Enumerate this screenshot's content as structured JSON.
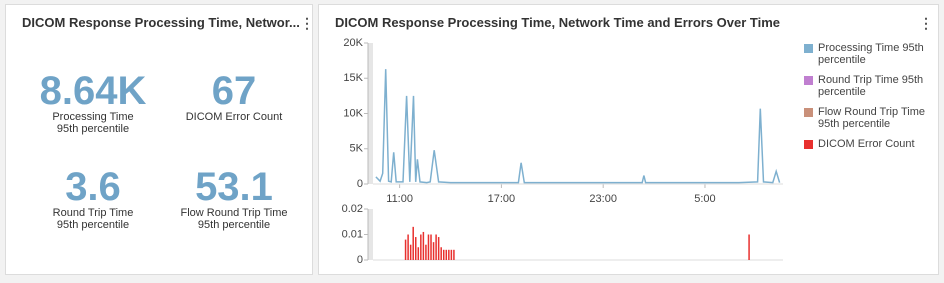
{
  "stats_panel": {
    "title": "DICOM Response Processing Time, Networ...",
    "stats": [
      {
        "value": "8.64K",
        "label": "Processing Time 95th percentile"
      },
      {
        "value": "67",
        "label": "DICOM Error Count"
      },
      {
        "value": "3.6",
        "label": "Round Trip Time 95th percentile"
      },
      {
        "value": "53.1",
        "label": "Flow Round Trip Time 95th percentile"
      }
    ]
  },
  "chart_panel": {
    "title": "DICOM Response Processing Time, Network Time and Errors Over Time"
  },
  "chart_data": [
    {
      "type": "line",
      "x": [
        9.6,
        9.85,
        10.0,
        10.18,
        10.35,
        10.5,
        10.65,
        10.8,
        11.2,
        11.41,
        11.6,
        11.82,
        11.95,
        12.05,
        12.2,
        12.6,
        12.8,
        13.04,
        13.3,
        14,
        16,
        18.0,
        18.16,
        18.35,
        20,
        23,
        25.3,
        25.4,
        25.5,
        28,
        31,
        32.1,
        32.26,
        32.45,
        33.0,
        33.2,
        33.4
      ],
      "series": [
        {
          "name": "Processing Time 95th percentile",
          "color": "#7eb0cf",
          "values": [
            1000,
            400,
            1500,
            16300,
            400,
            300,
            4500,
            300,
            300,
            12500,
            300,
            12500,
            300,
            3500,
            300,
            200,
            300,
            4800,
            300,
            200,
            200,
            200,
            3000,
            200,
            200,
            200,
            200,
            1200,
            200,
            200,
            200,
            300,
            10700,
            300,
            200,
            1800,
            200
          ]
        },
        {
          "name": "Round Trip Time 95th percentile",
          "color": "#c07fd0",
          "values": [
            null,
            null,
            null,
            null,
            null,
            null,
            null,
            null,
            null,
            null,
            null,
            null,
            null,
            null,
            null,
            null,
            null,
            null,
            null,
            null,
            null,
            null,
            null,
            null,
            null,
            null,
            null,
            null,
            null,
            null,
            null,
            null,
            null,
            null,
            null,
            null,
            null
          ]
        },
        {
          "name": "Flow Round Trip Time 95th percentile",
          "color": "#c9907a",
          "values": [
            null,
            null,
            null,
            null,
            null,
            null,
            null,
            null,
            null,
            null,
            null,
            null,
            null,
            null,
            null,
            null,
            null,
            null,
            null,
            null,
            null,
            null,
            null,
            null,
            null,
            null,
            null,
            null,
            null,
            null,
            null,
            null,
            null,
            null,
            null,
            null,
            null
          ]
        }
      ],
      "xlim": [
        9.43,
        33.6
      ],
      "xticks": [
        {
          "value": 11,
          "label": "11:00"
        },
        {
          "value": 17,
          "label": "17:00"
        },
        {
          "value": 23,
          "label": "23:00"
        },
        {
          "value": 29,
          "label": "5:00"
        }
      ],
      "ylim": [
        0,
        20000
      ],
      "yticks": [
        0,
        {
          "value": 5000,
          "label": "5K"
        },
        {
          "value": 10000,
          "label": "10K"
        },
        {
          "value": 15000,
          "label": "15K"
        },
        {
          "value": 20000,
          "label": "20K"
        }
      ]
    },
    {
      "type": "bar",
      "x": [
        11.35,
        11.5,
        11.65,
        11.8,
        11.95,
        12.1,
        12.25,
        12.4,
        12.55,
        12.7,
        12.85,
        13.0,
        13.15,
        13.3,
        13.45,
        13.6,
        13.75,
        13.9,
        14.05,
        14.2,
        31.6
      ],
      "series": [
        {
          "name": "DICOM Error Count",
          "color": "#e8302e",
          "values": [
            0.008,
            0.01,
            0.006,
            0.013,
            0.009,
            0.005,
            0.01,
            0.011,
            0.006,
            0.01,
            0.01,
            0.007,
            0.01,
            0.009,
            0.005,
            0.004,
            0.004,
            0.004,
            0.004,
            0.004,
            0.01
          ]
        }
      ],
      "xlim": [
        9.43,
        33.6
      ],
      "ylim": [
        0,
        0.02
      ],
      "yticks": [
        0,
        0.01,
        0.02
      ]
    }
  ]
}
